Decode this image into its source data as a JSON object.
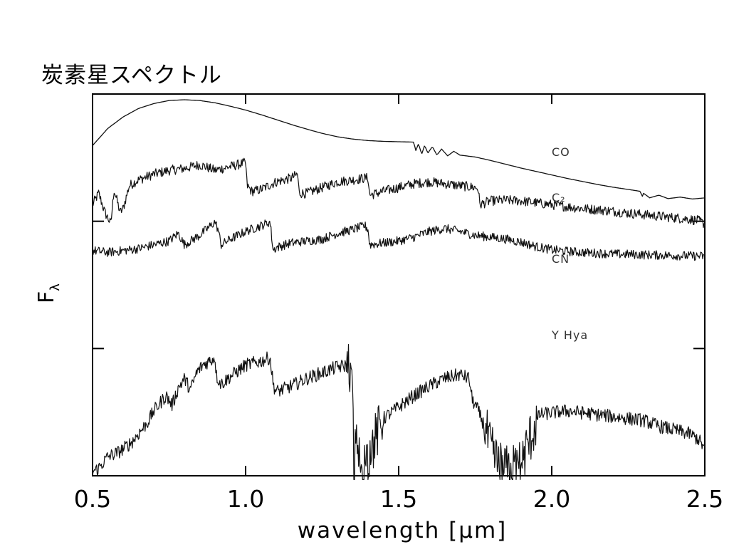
{
  "title": "炭素星スペクトル",
  "chart_data": {
    "type": "line",
    "title": "炭素星スペクトル",
    "xlabel": "wavelength [μm]",
    "ylabel": "Fλ",
    "xlim": [
      0.5,
      2.5
    ],
    "x_ticks": [
      "0.5",
      "1.0",
      "1.5",
      "2.0",
      "2.5"
    ],
    "y_tick_labels": false,
    "stacked_offsets": true,
    "series": [
      {
        "name": "CO",
        "noise": 0.0,
        "points": [
          [
            0.5,
            0.865
          ],
          [
            0.55,
            0.91
          ],
          [
            0.6,
            0.94
          ],
          [
            0.65,
            0.962
          ],
          [
            0.7,
            0.975
          ],
          [
            0.75,
            0.983
          ],
          [
            0.8,
            0.985
          ],
          [
            0.85,
            0.983
          ],
          [
            0.9,
            0.977
          ],
          [
            0.95,
            0.968
          ],
          [
            1.0,
            0.958
          ],
          [
            1.05,
            0.946
          ],
          [
            1.1,
            0.933
          ],
          [
            1.15,
            0.92
          ],
          [
            1.2,
            0.908
          ],
          [
            1.25,
            0.897
          ],
          [
            1.3,
            0.888
          ],
          [
            1.35,
            0.882
          ],
          [
            1.4,
            0.878
          ],
          [
            1.45,
            0.876
          ],
          [
            1.5,
            0.875
          ],
          [
            1.55,
            0.874
          ],
          [
            1.555,
            0.85
          ],
          [
            1.565,
            0.87
          ],
          [
            1.575,
            0.842
          ],
          [
            1.585,
            0.866
          ],
          [
            1.595,
            0.845
          ],
          [
            1.61,
            0.862
          ],
          [
            1.625,
            0.84
          ],
          [
            1.64,
            0.856
          ],
          [
            1.66,
            0.838
          ],
          [
            1.68,
            0.85
          ],
          [
            1.7,
            0.84
          ],
          [
            1.75,
            0.835
          ],
          [
            1.8,
            0.826
          ],
          [
            1.85,
            0.816
          ],
          [
            1.9,
            0.806
          ],
          [
            1.95,
            0.797
          ],
          [
            2.0,
            0.788
          ],
          [
            2.05,
            0.779
          ],
          [
            2.1,
            0.771
          ],
          [
            2.15,
            0.763
          ],
          [
            2.2,
            0.756
          ],
          [
            2.25,
            0.75
          ],
          [
            2.29,
            0.745
          ],
          [
            2.295,
            0.73
          ],
          [
            2.3,
            0.74
          ],
          [
            2.32,
            0.728
          ],
          [
            2.35,
            0.735
          ],
          [
            2.38,
            0.726
          ],
          [
            2.42,
            0.73
          ],
          [
            2.46,
            0.725
          ],
          [
            2.5,
            0.728
          ]
        ]
      },
      {
        "name": "C₂",
        "noise": 0.013,
        "points": [
          [
            0.5,
            0.71
          ],
          [
            0.52,
            0.74
          ],
          [
            0.54,
            0.69
          ],
          [
            0.56,
            0.66
          ],
          [
            0.57,
            0.75
          ],
          [
            0.59,
            0.69
          ],
          [
            0.6,
            0.7
          ],
          [
            0.62,
            0.76
          ],
          [
            0.65,
            0.775
          ],
          [
            0.7,
            0.79
          ],
          [
            0.75,
            0.8
          ],
          [
            0.8,
            0.805
          ],
          [
            0.85,
            0.815
          ],
          [
            0.9,
            0.8
          ],
          [
            0.95,
            0.81
          ],
          [
            1.0,
            0.82
          ],
          [
            1.005,
            0.76
          ],
          [
            1.02,
            0.745
          ],
          [
            1.05,
            0.75
          ],
          [
            1.1,
            0.77
          ],
          [
            1.15,
            0.78
          ],
          [
            1.17,
            0.79
          ],
          [
            1.175,
            0.74
          ],
          [
            1.2,
            0.74
          ],
          [
            1.25,
            0.755
          ],
          [
            1.3,
            0.77
          ],
          [
            1.35,
            0.775
          ],
          [
            1.39,
            0.78
          ],
          [
            1.4,
            0.78
          ],
          [
            1.405,
            0.735
          ],
          [
            1.45,
            0.745
          ],
          [
            1.5,
            0.755
          ],
          [
            1.55,
            0.765
          ],
          [
            1.6,
            0.77
          ],
          [
            1.65,
            0.765
          ],
          [
            1.7,
            0.76
          ],
          [
            1.75,
            0.755
          ],
          [
            1.76,
            0.752
          ],
          [
            1.765,
            0.71
          ],
          [
            1.8,
            0.72
          ],
          [
            1.85,
            0.722
          ],
          [
            1.9,
            0.72
          ],
          [
            1.95,
            0.715
          ],
          [
            2.0,
            0.71
          ],
          [
            2.05,
            0.705
          ],
          [
            2.1,
            0.7
          ],
          [
            2.15,
            0.697
          ],
          [
            2.2,
            0.693
          ],
          [
            2.25,
            0.688
          ],
          [
            2.3,
            0.684
          ],
          [
            2.35,
            0.68
          ],
          [
            2.4,
            0.676
          ],
          [
            2.45,
            0.672
          ],
          [
            2.48,
            0.668
          ],
          [
            2.5,
            0.66
          ]
        ]
      },
      {
        "name": "CN",
        "noise": 0.012,
        "points": [
          [
            0.5,
            0.59
          ],
          [
            0.55,
            0.585
          ],
          [
            0.6,
            0.59
          ],
          [
            0.65,
            0.595
          ],
          [
            0.7,
            0.605
          ],
          [
            0.75,
            0.615
          ],
          [
            0.78,
            0.635
          ],
          [
            0.8,
            0.605
          ],
          [
            0.85,
            0.63
          ],
          [
            0.9,
            0.665
          ],
          [
            0.91,
            0.645
          ],
          [
            0.92,
            0.605
          ],
          [
            0.95,
            0.62
          ],
          [
            1.0,
            0.64
          ],
          [
            1.05,
            0.655
          ],
          [
            1.08,
            0.665
          ],
          [
            1.09,
            0.59
          ],
          [
            1.1,
            0.598
          ],
          [
            1.15,
            0.61
          ],
          [
            1.2,
            0.615
          ],
          [
            1.25,
            0.62
          ],
          [
            1.3,
            0.635
          ],
          [
            1.35,
            0.645
          ],
          [
            1.39,
            0.655
          ],
          [
            1.4,
            0.645
          ],
          [
            1.405,
            0.605
          ],
          [
            1.45,
            0.61
          ],
          [
            1.5,
            0.615
          ],
          [
            1.55,
            0.625
          ],
          [
            1.6,
            0.64
          ],
          [
            1.65,
            0.648
          ],
          [
            1.7,
            0.64
          ],
          [
            1.75,
            0.63
          ],
          [
            1.8,
            0.625
          ],
          [
            1.85,
            0.62
          ],
          [
            1.9,
            0.612
          ],
          [
            1.95,
            0.6
          ],
          [
            2.0,
            0.592
          ],
          [
            2.05,
            0.588
          ],
          [
            2.1,
            0.585
          ],
          [
            2.15,
            0.583
          ],
          [
            2.2,
            0.581
          ],
          [
            2.25,
            0.58
          ],
          [
            2.3,
            0.579
          ],
          [
            2.35,
            0.578
          ],
          [
            2.4,
            0.577
          ],
          [
            2.45,
            0.576
          ],
          [
            2.5,
            0.575
          ]
        ]
      },
      {
        "name": "Y Hya",
        "noise": 0.018,
        "points": [
          [
            0.5,
            0.01
          ],
          [
            0.52,
            0.02
          ],
          [
            0.55,
            0.05
          ],
          [
            0.58,
            0.06
          ],
          [
            0.6,
            0.07
          ],
          [
            0.63,
            0.09
          ],
          [
            0.65,
            0.11
          ],
          [
            0.68,
            0.14
          ],
          [
            0.7,
            0.17
          ],
          [
            0.72,
            0.19
          ],
          [
            0.74,
            0.21
          ],
          [
            0.76,
            0.185
          ],
          [
            0.78,
            0.23
          ],
          [
            0.8,
            0.255
          ],
          [
            0.82,
            0.225
          ],
          [
            0.84,
            0.27
          ],
          [
            0.86,
            0.29
          ],
          [
            0.88,
            0.3
          ],
          [
            0.9,
            0.31
          ],
          [
            0.905,
            0.26
          ],
          [
            0.92,
            0.24
          ],
          [
            0.95,
            0.26
          ],
          [
            1.0,
            0.29
          ],
          [
            1.05,
            0.3
          ],
          [
            1.08,
            0.31
          ],
          [
            1.09,
            0.24
          ],
          [
            1.1,
            0.22
          ],
          [
            1.15,
            0.235
          ],
          [
            1.2,
            0.255
          ],
          [
            1.25,
            0.27
          ],
          [
            1.3,
            0.285
          ],
          [
            1.34,
            0.29
          ],
          [
            1.36,
            0.08
          ],
          [
            1.38,
            0.02
          ],
          [
            1.4,
            0.05
          ],
          [
            1.45,
            0.15
          ],
          [
            1.5,
            0.18
          ],
          [
            1.55,
            0.21
          ],
          [
            1.6,
            0.235
          ],
          [
            1.65,
            0.255
          ],
          [
            1.7,
            0.265
          ],
          [
            1.73,
            0.255
          ],
          [
            1.74,
            0.2
          ],
          [
            1.76,
            0.17
          ],
          [
            1.78,
            0.13
          ],
          [
            1.8,
            0.07
          ],
          [
            1.83,
            0.02
          ],
          [
            1.86,
            0.01
          ],
          [
            1.9,
            0.03
          ],
          [
            1.93,
            0.1
          ],
          [
            1.96,
            0.16
          ],
          [
            2.0,
            0.165
          ],
          [
            2.05,
            0.17
          ],
          [
            2.1,
            0.165
          ],
          [
            2.15,
            0.16
          ],
          [
            2.2,
            0.155
          ],
          [
            2.25,
            0.15
          ],
          [
            2.3,
            0.145
          ],
          [
            2.35,
            0.13
          ],
          [
            2.4,
            0.12
          ],
          [
            2.45,
            0.11
          ],
          [
            2.48,
            0.095
          ],
          [
            2.5,
            0.07
          ]
        ]
      }
    ]
  }
}
